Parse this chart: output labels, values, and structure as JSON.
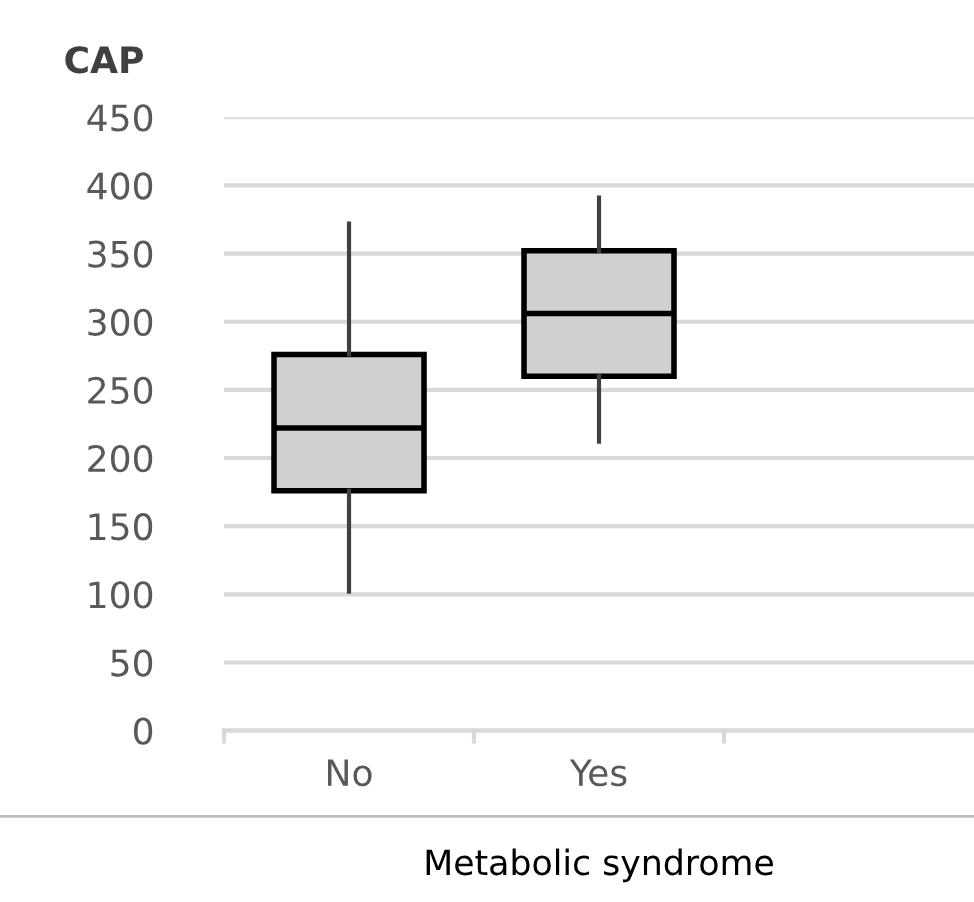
{
  "chart_data": {
    "type": "box",
    "ylabel": "CAP",
    "xlabel": "Metabolic syndrome",
    "categories": [
      "No",
      "Yes"
    ],
    "boxes": [
      {
        "low": 102,
        "q1": 176,
        "median": 222,
        "q3": 276,
        "high": 372
      },
      {
        "low": 212,
        "q1": 260,
        "median": 306,
        "q3": 352,
        "high": 391
      }
    ],
    "color": "#d0d0d0",
    "ylim": [
      0,
      450
    ],
    "yticks": [
      0,
      50,
      100,
      150,
      200,
      250,
      300,
      350,
      400,
      450
    ],
    "grid": "y",
    "legend": false
  }
}
